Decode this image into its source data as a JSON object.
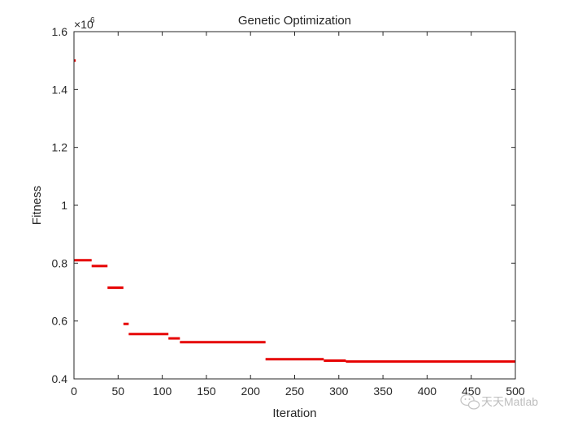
{
  "chart_data": {
    "type": "line",
    "title": "Genetic Optimization",
    "xlabel": "Iteration",
    "ylabel": "Fitness",
    "exponent_base": "×10",
    "exponent_power": "6",
    "xlim": [
      0,
      500
    ],
    "ylim": [
      0.4,
      1.6
    ],
    "xticks": [
      0,
      50,
      100,
      150,
      200,
      250,
      300,
      350,
      400,
      450,
      500
    ],
    "xtick_labels": [
      "0",
      "50",
      "100",
      "150",
      "200",
      "250",
      "300",
      "350",
      "400",
      "450",
      "500"
    ],
    "yticks": [
      0.4,
      0.6,
      0.8,
      1.0,
      1.2,
      1.4,
      1.6
    ],
    "ytick_labels": [
      "0.4",
      "0.6",
      "0.8",
      "1",
      "1.2",
      "1.4",
      "1.6"
    ],
    "grid": false,
    "series": [
      {
        "color": "#e60000",
        "segments": [
          {
            "x_start": 0,
            "x_end": 2,
            "y": 1.5
          },
          {
            "x_start": 0,
            "x_end": 20,
            "y": 0.81
          },
          {
            "x_start": 20,
            "x_end": 38,
            "y": 0.79
          },
          {
            "x_start": 38,
            "x_end": 56,
            "y": 0.715
          },
          {
            "x_start": 56,
            "x_end": 62,
            "y": 0.59
          },
          {
            "x_start": 62,
            "x_end": 107,
            "y": 0.555
          },
          {
            "x_start": 107,
            "x_end": 120,
            "y": 0.54
          },
          {
            "x_start": 120,
            "x_end": 217,
            "y": 0.527
          },
          {
            "x_start": 217,
            "x_end": 283,
            "y": 0.468
          },
          {
            "x_start": 283,
            "x_end": 308,
            "y": 0.463
          },
          {
            "x_start": 308,
            "x_end": 500,
            "y": 0.46
          }
        ]
      }
    ]
  },
  "watermark": {
    "text": "天天Matlab",
    "icon": "wechat-icon"
  }
}
